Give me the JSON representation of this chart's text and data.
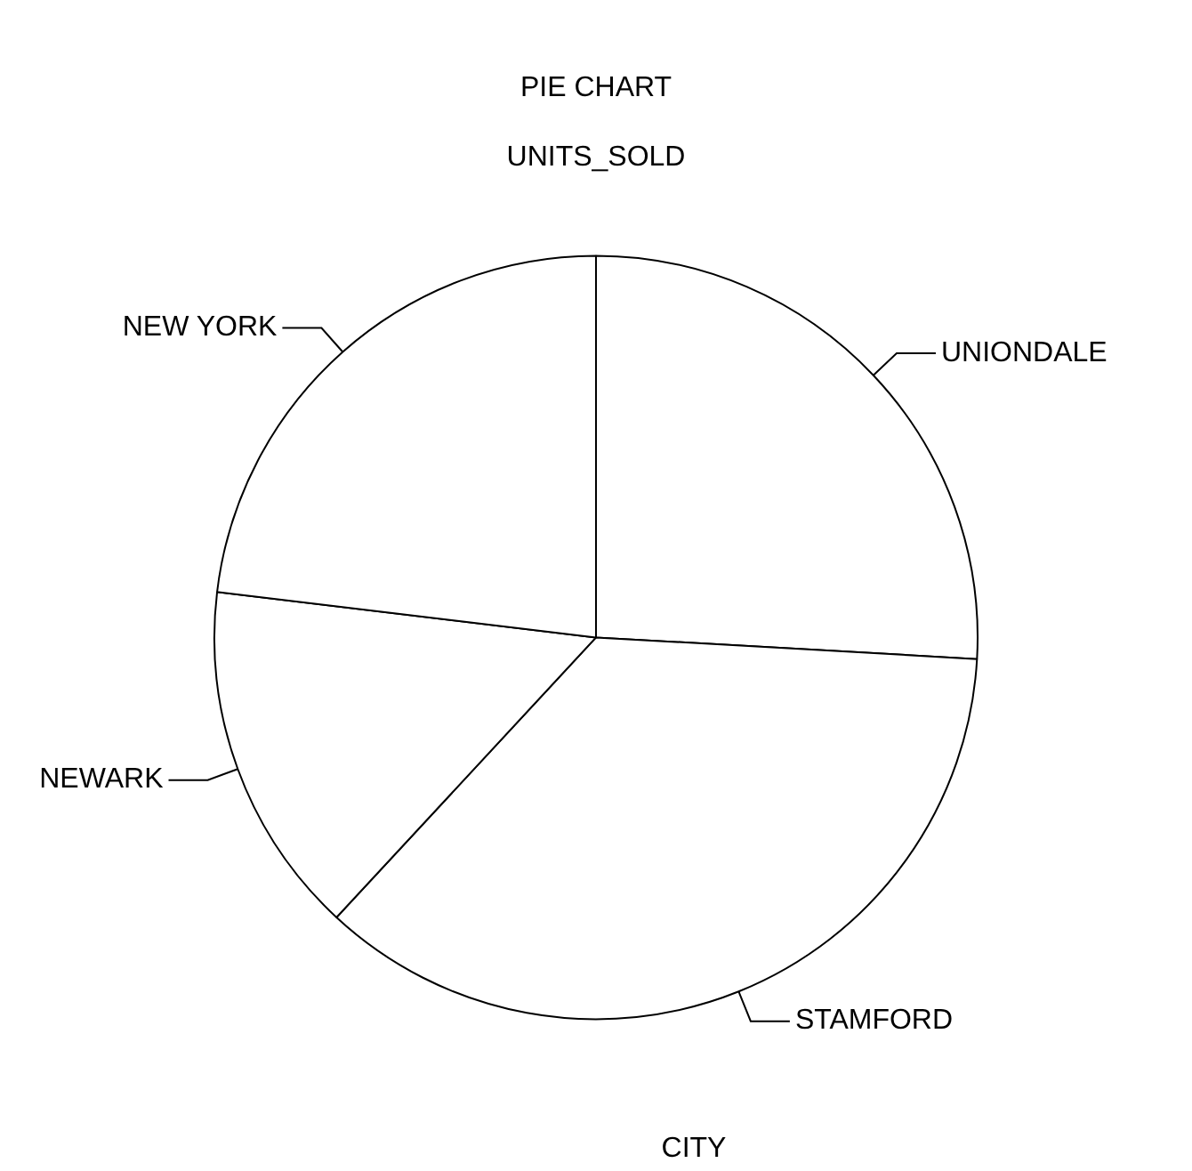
{
  "chart_data": {
    "type": "pie",
    "title": "PIE CHART",
    "subtitle": "UNITS_SOLD",
    "xlabel": "CITY",
    "categories": [
      "UNIONDALE",
      "STAMFORD",
      "NEWARK",
      "NEW YORK"
    ],
    "values": [
      25.9,
      36.0,
      15.0,
      23.1
    ],
    "colors": [
      "#ffffff",
      "#ffffff",
      "#ffffff",
      "#ffffff"
    ],
    "legend": false
  }
}
